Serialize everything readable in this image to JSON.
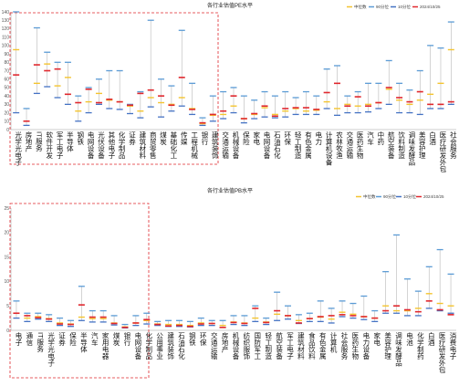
{
  "colors": {
    "median": "#f4c430",
    "p90": "#5b9bd5",
    "p10": "#4472c4",
    "current": "#e0282e",
    "range": "#b8b8b8",
    "dash_box": "#e0282e"
  },
  "chart_data": [
    {
      "type": "range-marker",
      "title": "各行业估值PE水平",
      "legend": [
        "中位数",
        "90分位",
        "10分位",
        "2024/10/25"
      ],
      "legend_placement": "top-right",
      "ylim": [
        0,
        140
      ],
      "yticks": [
        0,
        10,
        20,
        30,
        40,
        50,
        60,
        70,
        80,
        90,
        100,
        110,
        120,
        130,
        140
      ],
      "grid": false,
      "categories": [
        "光学光电子",
        "房地产",
        "IT服务",
        "软件开发",
        "军工电子",
        "半导体",
        "钢铁",
        "电网设备",
        "光伏设备",
        "其他电子",
        "化学制品",
        "证券",
        "建筑材料",
        "商贸零售",
        "煤炭",
        "基础化工",
        "传媒",
        "工程机械",
        "银行",
        "建筑装饰",
        "交通运输",
        "机械设备",
        "保险",
        "家电",
        "电网设备",
        "石油石化",
        "环保",
        "轻工制造",
        "有色金属",
        "电力",
        "计算机设备",
        "农林牧渔",
        "交通运输",
        "医药生物",
        "汽车",
        "中药",
        "航空装备",
        "饮料制造",
        "调味发酵品",
        "美容护理",
        "白酒",
        "医疗研发外包",
        "社会服务"
      ],
      "series": [
        {
          "name": "中位数",
          "values": [
            95,
            10,
            55,
            78,
            52,
            62,
            22,
            33,
            43,
            35,
            33,
            28,
            22,
            38,
            32,
            30,
            38,
            25,
            7,
            17,
            18,
            28,
            13,
            18,
            26,
            18,
            22,
            25,
            22,
            23,
            33,
            25,
            30,
            28,
            30,
            32,
            48,
            35,
            30,
            35,
            42,
            55,
            95
          ]
        },
        {
          "name": "90分位",
          "values": [
            140,
            25,
            121,
            92,
            80,
            80,
            40,
            50,
            60,
            70,
            70,
            30,
            45,
            130,
            60,
            52,
            118,
            55,
            14,
            40,
            45,
            50,
            40,
            35,
            45,
            40,
            45,
            38,
            45,
            40,
            72,
            76,
            40,
            45,
            55,
            55,
            82,
            55,
            47,
            70,
            100,
            97,
            128
          ]
        },
        {
          "name": "10分位",
          "values": [
            20,
            5,
            43,
            51,
            38,
            30,
            10,
            20,
            30,
            25,
            24,
            19,
            14,
            27,
            15,
            22,
            28,
            18,
            5,
            10,
            13,
            20,
            8,
            13,
            15,
            14,
            15,
            18,
            18,
            18,
            25,
            17,
            20,
            20,
            21,
            25,
            30,
            20,
            20,
            18,
            25,
            25,
            30
          ]
        },
        {
          "name": "2024/10/25",
          "values": [
            65,
            10,
            77,
            70,
            72,
            42,
            32,
            48,
            32,
            36,
            33,
            29,
            43,
            47,
            40,
            29,
            62,
            24,
            8,
            18,
            22,
            40,
            13,
            19,
            28,
            16,
            25,
            26,
            26,
            24,
            44,
            55,
            28,
            39,
            28,
            32,
            50,
            38,
            33,
            45,
            30,
            30,
            33
          ]
        }
      ]
    },
    {
      "type": "range-marker",
      "title": "各行业估值PB水平",
      "legend": [
        "中位数",
        "90分位",
        "10分位",
        "2024/10/25"
      ],
      "legend_placement": "top-right",
      "ylim": [
        0,
        25
      ],
      "yticks": [
        0,
        5,
        10,
        15,
        20,
        25
      ],
      "grid": false,
      "categories": [
        "电子",
        "通信",
        "IT服务",
        "光学光电子",
        "证券",
        "保险",
        "半导体",
        "汽车",
        "家用电器",
        "煤炭",
        "银行",
        "电网设备",
        "化学制品",
        "公用事业",
        "建筑装饰",
        "石油石化",
        "钢铁",
        "环保",
        "交通运输",
        "房地产",
        "机械设备",
        "纺织服饰",
        "国防军工",
        "轻工制造",
        "航空装备",
        "军工电子",
        "建筑材料",
        "食品饮料",
        "有色金属",
        "计算机",
        "社会服务",
        "医药生物",
        "电力设备",
        "家电",
        "美容护理",
        "调味发酵品",
        "电池",
        "化学制药",
        "白酒",
        "医疗研发外包",
        "消费电子"
      ],
      "series": [
        {
          "name": "中位数",
          "values": [
            3.5,
            2.5,
            2.8,
            2.4,
            1.5,
            1.3,
            2.7,
            2.4,
            2.4,
            1.5,
            0.7,
            1.5,
            2,
            1.3,
            1.2,
            1.2,
            1,
            1.5,
            1.4,
            1,
            1.7,
            1.5,
            2.5,
            1.7,
            3.3,
            3,
            2,
            2.4,
            2.7,
            2.3,
            3.7,
            3.3,
            2.8,
            2.5,
            5,
            4,
            4,
            4.5,
            7.5,
            5.5,
            5
          ]
        },
        {
          "name": "90分位",
          "values": [
            6,
            3.5,
            3.5,
            3.2,
            2.5,
            2,
            9,
            4,
            4,
            3,
            1.2,
            3,
            3.5,
            1.8,
            2,
            2,
            1.8,
            2.5,
            2,
            2,
            3,
            3,
            5,
            2.5,
            7.8,
            5,
            3.2,
            3.5,
            6,
            4.5,
            6,
            5.5,
            7,
            4,
            12,
            19.5,
            10.5,
            8,
            13,
            16.5,
            11.5
          ]
        },
        {
          "name": "10分位",
          "values": [
            2.5,
            1.8,
            2.3,
            1.8,
            1,
            0.8,
            2,
            1.7,
            1.7,
            1.1,
            0.5,
            1,
            1.3,
            1,
            0.8,
            0.8,
            0.7,
            1,
            1,
            0.6,
            1.2,
            1,
            1.8,
            1.2,
            2,
            2.3,
            1.4,
            1.8,
            1.8,
            1.5,
            2.8,
            2.5,
            2.2,
            1.8,
            3.5,
            3.5,
            3,
            3,
            4.5,
            4,
            3.5
          ]
        },
        {
          "name": "2024/10/25",
          "values": [
            3.5,
            3,
            2.6,
            2.3,
            1.3,
            1.2,
            5.2,
            2.7,
            2.7,
            1.4,
            0.6,
            1.5,
            2.2,
            1.2,
            0.9,
            1,
            0.8,
            1.3,
            1.4,
            0.6,
            1.6,
            1.4,
            4.5,
            1.6,
            4,
            3,
            1.5,
            2.4,
            2.8,
            3,
            3.2,
            3,
            2.8,
            2.5,
            4,
            5,
            4.2,
            3.8,
            6,
            4.2,
            3.2
          ]
        }
      ]
    }
  ]
}
